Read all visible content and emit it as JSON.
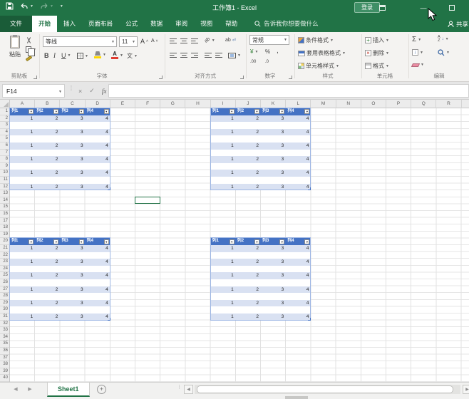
{
  "colors": {
    "excel_green": "#217346",
    "table_header_blue": "#4472C4",
    "table_band_blue": "#D9E1F2",
    "ribbon_bg": "#F4F3F1"
  },
  "title_bar": {
    "title": "工作簿1 - Excel",
    "sign_in_label": "登录"
  },
  "tab_bar": {
    "file_label": "文件",
    "tabs": [
      "开始",
      "插入",
      "页面布局",
      "公式",
      "数据",
      "审阅",
      "视图",
      "帮助"
    ],
    "active_tab": "开始",
    "search_label": "告诉我你想要做什么",
    "share_label": "共享"
  },
  "ribbon": {
    "clipboard": {
      "group_label": "剪贴板",
      "paste_label": "粘贴"
    },
    "font": {
      "group_label": "字体",
      "font_name": "等线",
      "font_size": "11",
      "bold_label": "B",
      "italic_label": "I",
      "underline_label": "U",
      "grow_label": "A",
      "shrink_label": "A",
      "phonetic_label": "文"
    },
    "alignment": {
      "group_label": "对齐方式",
      "orient_label": "ab",
      "wrap_label": "ab"
    },
    "number": {
      "group_label": "数字",
      "format_value": "常规",
      "currency_label": "¥",
      "percent_label": "%",
      "comma_label": ",",
      "dec_inc_label": ".00",
      "dec_dec_label": ".0"
    },
    "styles": {
      "group_label": "样式",
      "conditional_label": "条件格式",
      "table_format_label": "套用表格格式",
      "cell_styles_label": "单元格样式"
    },
    "cells": {
      "group_label": "单元格",
      "insert_label": "插入",
      "delete_label": "删除",
      "format_label": "格式",
      "insert_glyph": "+",
      "delete_glyph": "×"
    },
    "editing": {
      "group_label": "编辑",
      "autosum_label": "Σ",
      "sort_top": "A",
      "sort_bottom": "Z",
      "fill_glyph": "↓"
    }
  },
  "formula_bar": {
    "name_box_value": "F14",
    "formula_value": "",
    "fx_label": "fx",
    "cancel_glyph": "×",
    "enter_glyph": "✓"
  },
  "worksheet": {
    "columns": [
      "A",
      "B",
      "C",
      "D",
      "E",
      "F",
      "G",
      "H",
      "I",
      "J",
      "K",
      "L",
      "M",
      "N",
      "O",
      "P",
      "Q",
      "R",
      "S"
    ],
    "row_count": 40,
    "active_cell": "F14",
    "filter_glyph": "▼",
    "tables": [
      {
        "range": "A1:D12",
        "col_start": 0,
        "header_row": 1,
        "headers": [
          "列1",
          "列2",
          "列3",
          "列4"
        ],
        "data_rows": [
          [
            1,
            2,
            3,
            4
          ],
          [],
          [
            1,
            2,
            3,
            4
          ],
          [],
          [
            1,
            2,
            3,
            4
          ],
          [],
          [
            1,
            2,
            3,
            4
          ],
          [],
          [
            1,
            2,
            3,
            4
          ],
          [],
          [
            1,
            2,
            3,
            4
          ]
        ]
      },
      {
        "range": "I1:L12",
        "col_start": 8,
        "header_row": 1,
        "headers": [
          "列1",
          "列2",
          "列3",
          "列4"
        ],
        "data_rows": [
          [
            1,
            2,
            3,
            4
          ],
          [],
          [
            1,
            2,
            3,
            4
          ],
          [],
          [
            1,
            2,
            3,
            4
          ],
          [],
          [
            1,
            2,
            3,
            4
          ],
          [],
          [
            1,
            2,
            3,
            4
          ],
          [],
          [
            1,
            2,
            3,
            4
          ]
        ]
      },
      {
        "range": "A20:D31",
        "col_start": 0,
        "header_row": 20,
        "headers": [
          "列1",
          "列2",
          "列3",
          "列4"
        ],
        "data_rows": [
          [
            1,
            2,
            3,
            4
          ],
          [],
          [
            1,
            2,
            3,
            4
          ],
          [],
          [
            1,
            2,
            3,
            4
          ],
          [],
          [
            1,
            2,
            3,
            4
          ],
          [],
          [
            1,
            2,
            3,
            4
          ],
          [],
          [
            1,
            2,
            3,
            4
          ]
        ]
      },
      {
        "range": "I20:L31",
        "col_start": 8,
        "header_row": 20,
        "headers": [
          "列1",
          "列2",
          "列3",
          "列4"
        ],
        "data_rows": [
          [
            1,
            2,
            3,
            4
          ],
          [],
          [
            1,
            2,
            3,
            4
          ],
          [],
          [
            1,
            2,
            3,
            4
          ],
          [],
          [
            1,
            2,
            3,
            4
          ],
          [],
          [
            1,
            2,
            3,
            4
          ],
          [],
          [
            1,
            2,
            3,
            4
          ]
        ]
      }
    ]
  },
  "sheet_tab_bar": {
    "sheets": [
      "Sheet1"
    ],
    "active_sheet": "Sheet1",
    "add_glyph": "+",
    "prev_glyph": "◀",
    "next_glyph": "▶"
  }
}
